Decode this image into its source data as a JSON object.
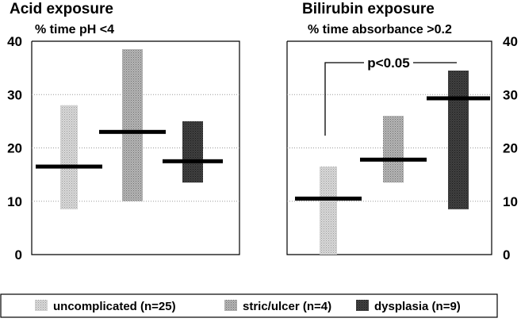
{
  "chart_data": [
    {
      "type": "bar",
      "title": "Acid exposure",
      "subtitle": "% time pH <4",
      "ylim": [
        0,
        40
      ],
      "yticks": [
        0,
        10,
        20,
        30,
        40
      ],
      "grid": true,
      "axis_side": "left",
      "groups": [
        {
          "group": "uncomplicated",
          "range": [
            8.5,
            28
          ],
          "median": 16.5
        },
        {
          "group": "stric/ulcer",
          "range": [
            10,
            38.5
          ],
          "median": 23
        },
        {
          "group": "dysplasia",
          "range": [
            13.5,
            25
          ],
          "median": 17.5
        }
      ]
    },
    {
      "type": "bar",
      "title": "Bilirubin exposure",
      "subtitle": "% time absorbance >0.2",
      "ylim": [
        0,
        40
      ],
      "yticks": [
        0,
        10,
        20,
        30,
        40
      ],
      "grid": true,
      "axis_side": "right",
      "annotation": "p<0.05",
      "groups": [
        {
          "group": "uncomplicated",
          "range": [
            0,
            16.5
          ],
          "median": 10.5
        },
        {
          "group": "stric/ulcer",
          "range": [
            13.5,
            26
          ],
          "median": 17.8
        },
        {
          "group": "dysplasia",
          "range": [
            8.5,
            34.5
          ],
          "median": 29.3
        }
      ]
    }
  ],
  "legend": {
    "placement": "bottom",
    "items": [
      {
        "label": "uncomplicated (n=25)",
        "color": "#c8c8c8"
      },
      {
        "label": "stric/ulcer (n=4)",
        "color": "#a0a0a0"
      },
      {
        "label": "dysplasia (n=9)",
        "color": "#3a3a3a"
      }
    ]
  },
  "colors": {
    "uncomplicated": "#cfcfcf",
    "stric/ulcer": "#ababab",
    "dysplasia": "#3c3c3c",
    "median": "#000000",
    "grid": "#9a9a9a"
  }
}
